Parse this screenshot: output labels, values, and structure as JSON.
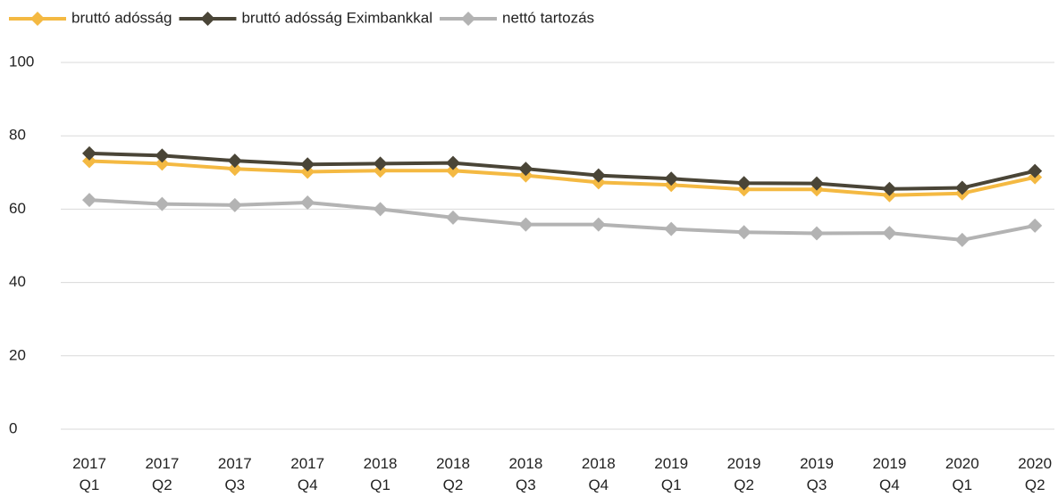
{
  "chart_data": {
    "type": "line",
    "categories": [
      "2017 Q1",
      "2017 Q2",
      "2017 Q3",
      "2017 Q4",
      "2018 Q1",
      "2018 Q2",
      "2018 Q3",
      "2018 Q4",
      "2019 Q1",
      "2019 Q2",
      "2019 Q3",
      "2019 Q4",
      "2020 Q1",
      "2020 Q2"
    ],
    "series": [
      {
        "name": "bruttó adósság",
        "color": "#f4b942",
        "values": [
          73.1,
          72.4,
          71.0,
          70.2,
          70.5,
          70.5,
          69.2,
          67.3,
          66.6,
          65.4,
          65.4,
          63.8,
          64.3,
          68.7
        ]
      },
      {
        "name": "bruttó adósság Eximbankkal",
        "color": "#4a4537",
        "values": [
          75.2,
          74.6,
          73.2,
          72.2,
          72.4,
          72.6,
          71.0,
          69.2,
          68.3,
          67.1,
          67.0,
          65.5,
          65.8,
          70.4
        ]
      },
      {
        "name": "nettó tartozás",
        "color": "#b3b3b3",
        "values": [
          62.5,
          61.4,
          61.1,
          61.8,
          60.0,
          57.7,
          55.8,
          55.8,
          54.6,
          53.7,
          53.4,
          53.5,
          51.6,
          55.5
        ]
      }
    ],
    "ylim": [
      0,
      100
    ],
    "yticks": [
      0,
      20,
      40,
      60,
      80,
      100
    ],
    "grid": true,
    "legend": "top"
  }
}
